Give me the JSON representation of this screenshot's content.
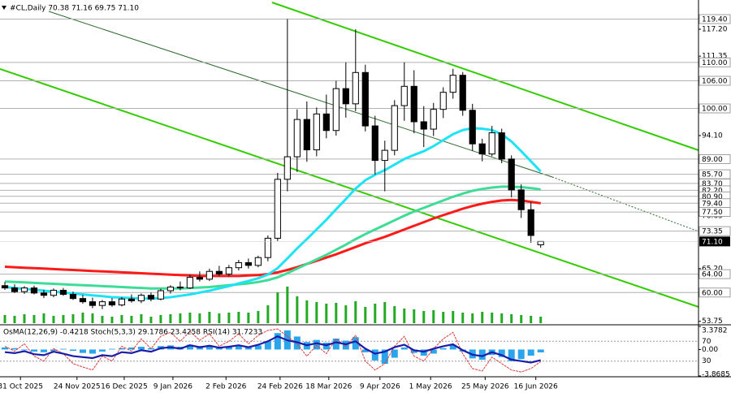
{
  "chart_data": [
    {
      "type": "candlestick",
      "title": "#CL,Daily  70.38 71.16 69.75 71.10",
      "open": [
        61.5,
        61.0,
        60.2,
        61.0,
        59.9,
        59.4,
        60.5,
        59.6,
        58.7,
        58.0,
        57.2,
        58.0,
        57.3,
        58.6,
        58.2,
        59.4,
        58.6,
        60.4,
        61.2,
        61.0,
        63.3,
        62.9,
        64.6,
        64.0,
        65.4,
        66.5,
        65.9,
        67.6,
        71.8,
        84.6,
        89.5,
        97.6,
        91.0,
        98.8,
        95.2,
        104.3,
        101.0,
        107.8,
        96.2,
        88.7,
        90.9,
        100.6,
        104.8,
        97.1,
        95.5,
        99.8,
        103.5,
        107.2,
        99.6,
        92.3,
        90.1,
        94.7,
        89.0,
        82.3,
        78.0,
        70.38
      ],
      "high": [
        62.3,
        61.8,
        61.4,
        61.5,
        60.6,
        60.9,
        61.0,
        60.2,
        59.5,
        58.9,
        58.4,
        58.8,
        59.0,
        59.6,
        59.8,
        60.0,
        60.8,
        61.6,
        62.4,
        63.9,
        64.6,
        65.2,
        65.8,
        66.0,
        67.1,
        67.4,
        68.0,
        72.4,
        86.0,
        119.4,
        99.8,
        101.5,
        100.2,
        103.0,
        106.0,
        110.0,
        117.2,
        109.5,
        98.4,
        93.0,
        101.8,
        110.0,
        108.3,
        100.5,
        101.2,
        104.6,
        108.6,
        107.9,
        101.0,
        93.4,
        96.2,
        95.6,
        89.8,
        83.5,
        79.6,
        71.16
      ],
      "low": [
        60.6,
        59.9,
        59.7,
        59.6,
        58.8,
        59.0,
        59.3,
        58.4,
        57.6,
        56.6,
        56.4,
        56.9,
        57.0,
        57.8,
        57.7,
        58.1,
        58.3,
        59.8,
        60.5,
        60.8,
        62.4,
        62.5,
        63.6,
        63.5,
        64.8,
        65.2,
        65.5,
        66.8,
        71.2,
        82.0,
        86.2,
        88.4,
        89.6,
        93.5,
        94.1,
        98.0,
        99.4,
        95.0,
        85.6,
        82.0,
        89.8,
        97.3,
        94.6,
        91.6,
        94.0,
        97.9,
        102.1,
        98.4,
        90.8,
        88.5,
        89.6,
        88.1,
        80.7,
        76.2,
        70.8,
        69.75
      ],
      "close": [
        61.0,
        60.2,
        61.0,
        59.9,
        59.4,
        60.5,
        59.6,
        58.7,
        58.0,
        57.2,
        58.0,
        57.3,
        58.6,
        58.2,
        59.4,
        58.6,
        60.4,
        61.2,
        61.0,
        63.3,
        62.9,
        64.6,
        64.0,
        65.4,
        66.5,
        65.9,
        67.6,
        71.8,
        84.6,
        89.5,
        97.6,
        91.0,
        98.8,
        95.2,
        104.3,
        101.0,
        107.8,
        96.2,
        88.7,
        90.9,
        100.6,
        104.8,
        97.1,
        95.5,
        99.8,
        103.5,
        107.2,
        99.6,
        92.3,
        90.1,
        94.7,
        89.0,
        82.3,
        78.0,
        72.4,
        71.1
      ],
      "up_color": "#ffffff",
      "down_color": "#000000",
      "moving_averages": [
        {
          "color": "#ff1a1a",
          "values": [
            65.6,
            65.5,
            65.4,
            65.3,
            65.2,
            65.1,
            65.0,
            64.9,
            64.8,
            64.7,
            64.6,
            64.5,
            64.4,
            64.3,
            64.2,
            64.1,
            64.0,
            63.9,
            63.8,
            63.7,
            63.6,
            63.6,
            63.6,
            63.6,
            63.6,
            63.7,
            63.8,
            64.0,
            64.4,
            64.9,
            65.5,
            66.2,
            66.9,
            67.6,
            68.3,
            69.1,
            69.9,
            70.7,
            71.4,
            72.1,
            72.9,
            73.7,
            74.5,
            75.3,
            76.1,
            76.8,
            77.5,
            78.2,
            78.8,
            79.3,
            79.7,
            80.0,
            80.1,
            80.0,
            79.7,
            79.4
          ]
        },
        {
          "color": "#3ddc97",
          "values": [
            62.4,
            62.3,
            62.2,
            62.1,
            62.0,
            61.9,
            61.8,
            61.7,
            61.6,
            61.5,
            61.4,
            61.3,
            61.2,
            61.1,
            61.0,
            60.9,
            60.9,
            60.9,
            60.9,
            61.0,
            61.1,
            61.2,
            61.4,
            61.6,
            61.8,
            62.0,
            62.3,
            62.7,
            63.3,
            64.2,
            65.2,
            66.2,
            67.2,
            68.2,
            69.3,
            70.4,
            71.6,
            72.7,
            73.7,
            74.7,
            75.7,
            76.7,
            77.6,
            78.4,
            79.2,
            80.0,
            80.8,
            81.5,
            82.1,
            82.5,
            82.8,
            83.0,
            83.0,
            82.9,
            82.7,
            82.4
          ]
        },
        {
          "color": "#1ee3f5",
          "values": [
            61.2,
            61.0,
            60.8,
            60.6,
            60.4,
            60.2,
            60.0,
            59.8,
            59.6,
            59.4,
            59.2,
            59.0,
            58.9,
            58.8,
            58.7,
            58.7,
            58.8,
            59.0,
            59.3,
            59.6,
            60.0,
            60.4,
            60.9,
            61.4,
            62.0,
            62.5,
            63.1,
            63.9,
            65.3,
            67.4,
            69.6,
            71.6,
            73.7,
            75.8,
            78.1,
            80.3,
            82.6,
            84.4,
            85.6,
            86.6,
            87.8,
            89.0,
            89.9,
            90.7,
            91.8,
            93.1,
            94.4,
            95.3,
            95.7,
            95.6,
            95.3,
            94.4,
            92.8,
            90.7,
            88.5,
            86.3
          ]
        }
      ],
      "volumes": [
        10,
        9,
        11,
        10,
        12,
        9,
        10,
        11,
        13,
        12,
        9,
        8,
        10,
        9,
        11,
        8,
        10,
        11,
        12,
        13,
        12,
        14,
        12,
        13,
        14,
        13,
        15,
        22,
        38,
        45,
        33,
        28,
        26,
        24,
        25,
        22,
        27,
        20,
        24,
        26,
        21,
        18,
        17,
        15,
        16,
        14,
        15,
        13,
        12,
        14,
        13,
        12,
        11,
        10,
        9,
        8
      ],
      "volume_color": "#22aa22",
      "levels": [
        {
          "value": 119.4,
          "label": "119.40"
        },
        {
          "value": 110,
          "label": "110.00"
        },
        {
          "value": 106,
          "label": "106.00"
        },
        {
          "value": 100,
          "label": "100.00"
        },
        {
          "value": 89,
          "label": "89.00"
        },
        {
          "value": 85.7,
          "label": "85.70"
        },
        {
          "value": 83.7,
          "label": "83.70"
        },
        {
          "value": 82.2,
          "label": "82.20"
        },
        {
          "value": 80.9,
          "label": "80.90"
        },
        {
          "value": 79.4,
          "label": "79.40"
        },
        {
          "value": 77.5,
          "label": "77.50"
        },
        {
          "value": 73.35,
          "label": "73.35"
        },
        {
          "value": 64,
          "label": "64.00"
        },
        {
          "value": 60,
          "label": "60.00"
        }
      ],
      "last_price": {
        "value": 71.1,
        "label": "71.10"
      },
      "ylim": [
        53.35,
        123.55
      ],
      "yticks": [
        {
          "value": 117.2,
          "label": "117.20"
        },
        {
          "value": 111.35,
          "label": "111.35"
        },
        {
          "value": 94.1,
          "label": "94.10"
        },
        {
          "value": 76.65,
          "label": "76.65"
        },
        {
          "value": 65.2,
          "label": "65.20"
        },
        {
          "value": 59.45,
          "label": "59.45"
        },
        {
          "value": 53.75,
          "label": "53.75"
        }
      ],
      "xlim": [
        -0.5,
        71.2
      ],
      "xticks": [
        {
          "value": 1.6,
          "label": "31 Oct 2025"
        },
        {
          "value": 7.4,
          "label": "24 Nov 2025"
        },
        {
          "value": 12.25,
          "label": "16 Dec 2025"
        },
        {
          "value": 17.25,
          "label": "9 Jan 2026"
        },
        {
          "value": 22.7,
          "label": "2 Feb 2026"
        },
        {
          "value": 28.25,
          "label": "24 Feb 2026"
        },
        {
          "value": 33.25,
          "label": "18 Mar 2026"
        },
        {
          "value": 38.5,
          "label": "9 Apr 2026"
        },
        {
          "value": 43.7,
          "label": "1 May 2026"
        },
        {
          "value": 49.3,
          "label": "25 May 2026"
        },
        {
          "value": 54.5,
          "label": "16 Jun 2026"
        }
      ]
    },
    {
      "type": "oscillator",
      "title": "OsMA(12,26,9) -0.4218  Stoch(5,3,3) 29.1786 23.4258  RSI(14) 31.7233",
      "osma": {
        "color": "#2aa4ea",
        "values": [
          0.3,
          0.2,
          -0.1,
          -0.3,
          -0.4,
          -0.2,
          0.1,
          -0.2,
          -0.5,
          -0.6,
          -0.3,
          0.1,
          0.2,
          0.3,
          0.4,
          0.2,
          0.5,
          0.6,
          0.4,
          0.7,
          0.5,
          0.6,
          0.3,
          0.4,
          0.5,
          0.3,
          0.6,
          1.2,
          2.4,
          2.8,
          1.9,
          1.1,
          1.4,
          1.0,
          1.6,
          1.3,
          1.8,
          -0.4,
          -1.6,
          -2.1,
          -1.2,
          0.3,
          -0.5,
          -0.9,
          -0.6,
          0.2,
          0.7,
          -0.3,
          -1.3,
          -1.5,
          -0.8,
          -1.1,
          -1.7,
          -1.4,
          -0.9,
          -0.4218
        ]
      },
      "stoch": {
        "color": "#e03a3a",
        "axis": "y2",
        "values": [
          60,
          50,
          65,
          40,
          30,
          55,
          45,
          25,
          18,
          12,
          40,
          30,
          60,
          50,
          75,
          55,
          80,
          88,
          70,
          90,
          72,
          85,
          60,
          70,
          85,
          65,
          82,
          92,
          95,
          80,
          65,
          40,
          62,
          45,
          75,
          60,
          82,
          30,
          12,
          25,
          60,
          80,
          40,
          30,
          55,
          75,
          88,
          45,
          15,
          10,
          38,
          25,
          12,
          8,
          15,
          29.1786
        ]
      },
      "rsi": {
        "color": "#1c1ca8",
        "axis": "y2",
        "values": [
          48,
          46,
          50,
          44,
          42,
          49,
          45,
          40,
          38,
          36,
          42,
          40,
          48,
          46,
          52,
          49,
          56,
          58,
          55,
          62,
          58,
          61,
          57,
          59,
          62,
          58,
          63,
          70,
          80,
          72,
          68,
          62,
          66,
          62,
          68,
          64,
          70,
          55,
          45,
          49,
          58,
          63,
          52,
          49,
          55,
          60,
          64,
          52,
          43,
          40,
          48,
          42,
          33,
          30,
          27,
          31.7233
        ]
      },
      "ylim": [
        -3.8685,
        3.3782
      ],
      "yticks": [
        3.3782,
        {
          "value": 0,
          "label": "0.00"
        },
        -3.8685
      ],
      "y2lim": [
        0,
        100
      ],
      "y2ticks": [
        30,
        70
      ]
    }
  ]
}
